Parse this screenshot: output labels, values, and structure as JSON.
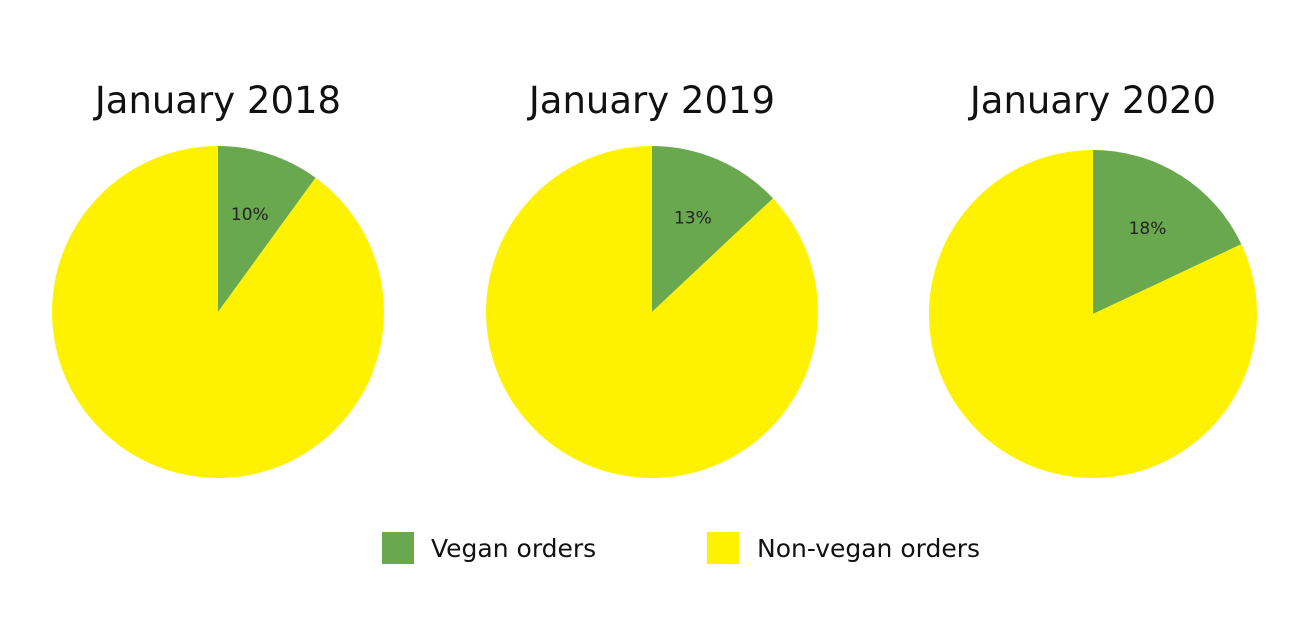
{
  "chart_data": [
    {
      "type": "pie",
      "title": "January 2018",
      "slices": [
        {
          "label": "Vegan orders",
          "value": 10,
          "display": "10%"
        },
        {
          "label": "Non-vegan orders",
          "value": 90,
          "display": ""
        }
      ]
    },
    {
      "type": "pie",
      "title": "January 2019",
      "slices": [
        {
          "label": "Vegan orders",
          "value": 13,
          "display": "13%"
        },
        {
          "label": "Non-vegan orders",
          "value": 87,
          "display": ""
        }
      ]
    },
    {
      "type": "pie",
      "title": "January 2020",
      "slices": [
        {
          "label": "Vegan orders",
          "value": 18,
          "display": "18%"
        },
        {
          "label": "Non-vegan orders",
          "value": 82,
          "display": ""
        }
      ]
    }
  ],
  "legend": {
    "placement": "bottom-center",
    "items": [
      {
        "label": "Vegan orders",
        "color": "#6aa84f"
      },
      {
        "label": "Non-vegan orders",
        "color": "#fff200"
      }
    ]
  }
}
